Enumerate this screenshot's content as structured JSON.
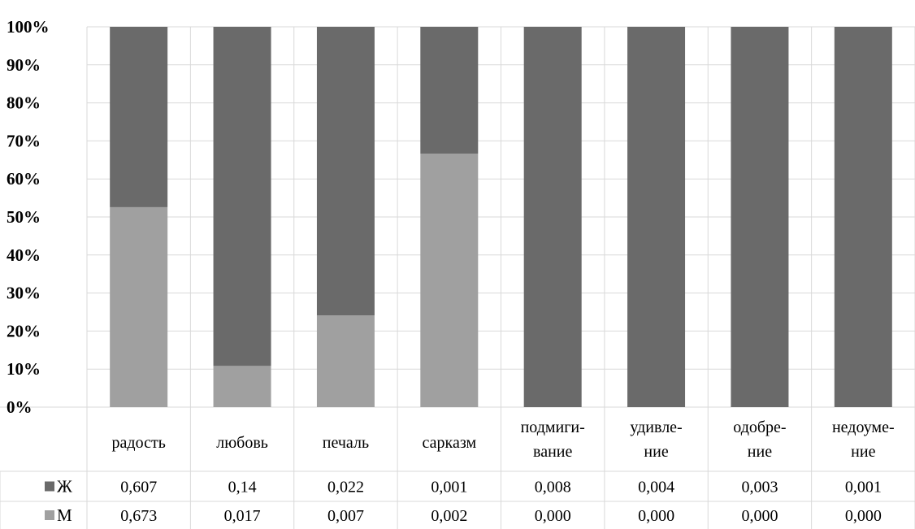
{
  "chart_data": {
    "type": "bar",
    "stacked": "100%",
    "categories": [
      [
        "радость"
      ],
      [
        "любовь"
      ],
      [
        "печаль"
      ],
      [
        "сарказм"
      ],
      [
        "подмиги-",
        "вание"
      ],
      [
        "удивле-",
        "ние"
      ],
      [
        "одобре-",
        "ние"
      ],
      [
        "недоуме-",
        "ние"
      ]
    ],
    "series": [
      {
        "name": "Ж",
        "color": "#6a6a6a",
        "values": [
          0.607,
          0.14,
          0.022,
          0.001,
          0.008,
          0.004,
          0.003,
          0.001
        ],
        "labels": [
          "0,607",
          "0,14",
          "0,022",
          "0,001",
          "0,008",
          "0,004",
          "0,003",
          "0,001"
        ]
      },
      {
        "name": "М",
        "color": "#a0a0a0",
        "values": [
          0.673,
          0.017,
          0.007,
          0.002,
          0.0,
          0.0,
          0.0,
          0.0
        ],
        "labels": [
          "0,673",
          "0,017",
          "0,007",
          "0,002",
          "0,000",
          "0,000",
          "0,000",
          "0,000"
        ]
      }
    ],
    "stack_order": [
      "М",
      "Ж"
    ],
    "y_ticks": [
      "0%",
      "10%",
      "20%",
      "30%",
      "40%",
      "50%",
      "60%",
      "70%",
      "80%",
      "90%",
      "100%"
    ],
    "ylim": [
      0,
      100
    ],
    "grid": true,
    "legend": "data-table-left"
  }
}
